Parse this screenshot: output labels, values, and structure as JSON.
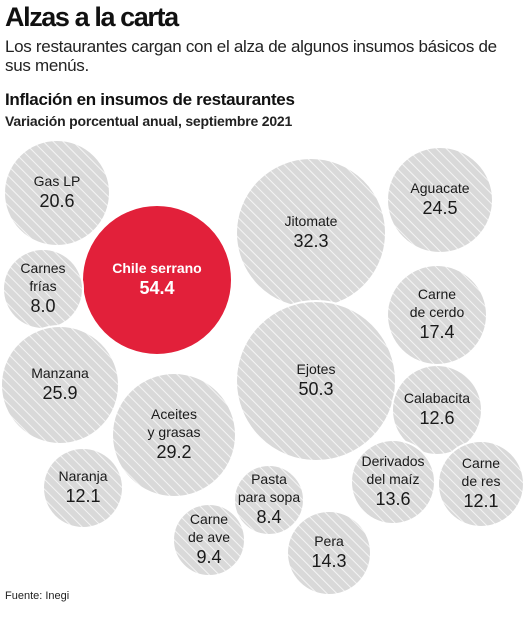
{
  "header": {
    "title": "Alzas a la carta",
    "deck": "Los restaurantes cargan con el alza de algunos insumos básicos de sus menús."
  },
  "source": "Fuente: Inegi",
  "colors": {
    "bubble_fill": "#d9d9d9",
    "bubble_stroke": "#ffffff",
    "highlight_fill": "#e2203a",
    "hatch": "#f4f4f4"
  },
  "chart_data": {
    "type": "bubble",
    "title": "Inflación en insumos de restaurantes",
    "subtitle": "Variación porcentual anual, septiembre 2021",
    "unit": "%",
    "highlight": "Chile serrano",
    "items": [
      {
        "name": "Gas LP",
        "value": 20.6
      },
      {
        "name": "Chile serrano",
        "value": 54.4
      },
      {
        "name": "Jitomate",
        "value": 32.3
      },
      {
        "name": "Aguacate",
        "value": 24.5
      },
      {
        "name": "Carnes frías",
        "value": 8.0
      },
      {
        "name": "Carne de cerdo",
        "value": 17.4
      },
      {
        "name": "Manzana",
        "value": 25.9
      },
      {
        "name": "Ejotes",
        "value": 50.3
      },
      {
        "name": "Calabacita",
        "value": 12.6
      },
      {
        "name": "Aceites y grasas",
        "value": 29.2
      },
      {
        "name": "Naranja",
        "value": 12.1
      },
      {
        "name": "Pasta para sopa",
        "value": 8.4
      },
      {
        "name": "Derivados del maíz",
        "value": 13.6
      },
      {
        "name": "Carne de res",
        "value": 12.1
      },
      {
        "name": "Carne de ave",
        "value": 9.4
      },
      {
        "name": "Pera",
        "value": 14.3
      }
    ]
  }
}
